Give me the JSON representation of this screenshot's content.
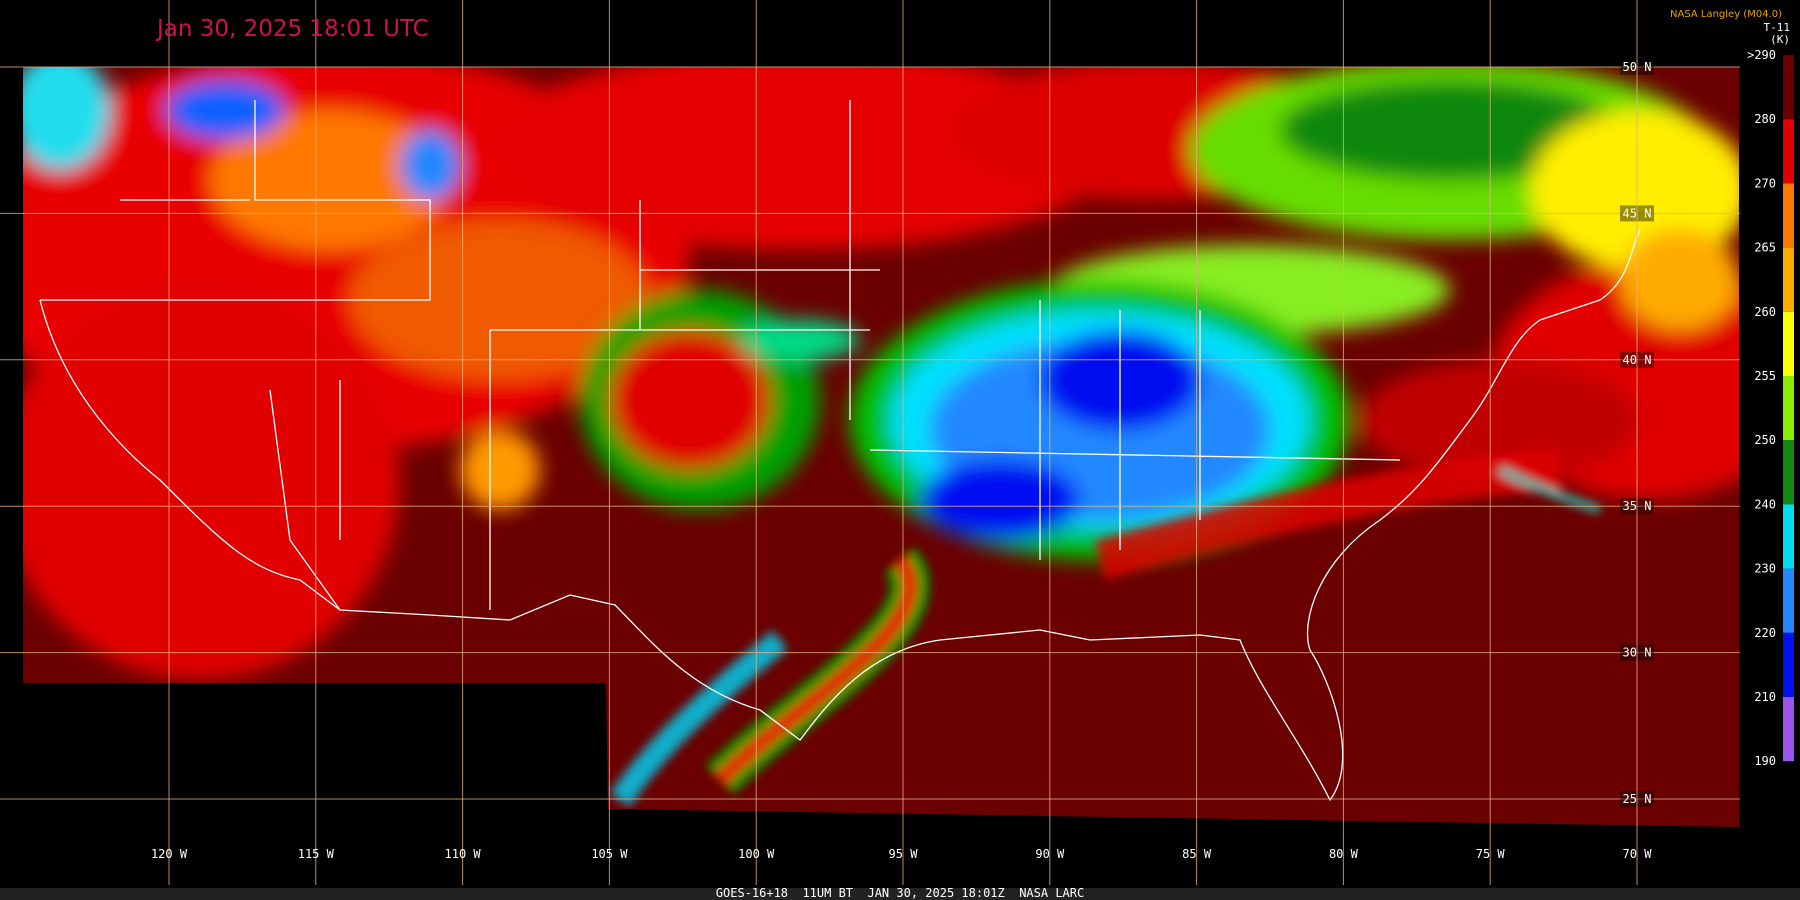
{
  "header": {
    "title": "Jan 30, 2025 18:01 UTC",
    "credit": "NASA Langley (M04.0)"
  },
  "colorbar": {
    "title": "T-11",
    "unit": "(K)",
    "labels": [
      ">290",
      "280",
      "270",
      "265",
      "260",
      "255",
      "250",
      "240",
      "230",
      "220",
      "210",
      "190"
    ]
  },
  "grid": {
    "latitude_labels": [
      "50 N",
      "45 N",
      "40 N",
      "35 N",
      "30 N",
      "25 N"
    ],
    "longitude_labels": [
      "120 W",
      "115 W",
      "110 W",
      "105 W",
      "100 W",
      "95 W",
      "90 W",
      "85 W",
      "80 W",
      "75 W",
      "70 W"
    ]
  },
  "footer": "GOES-16+18  11UM BT  JAN 30, 2025 18:01Z  NASA LARC"
}
